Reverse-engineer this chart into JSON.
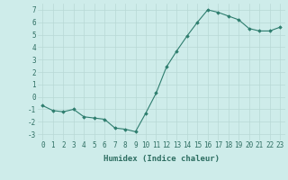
{
  "x": [
    0,
    1,
    2,
    3,
    4,
    5,
    6,
    7,
    8,
    9,
    10,
    11,
    12,
    13,
    14,
    15,
    16,
    17,
    18,
    19,
    20,
    21,
    22,
    23
  ],
  "y": [
    -0.7,
    -1.1,
    -1.2,
    -1.0,
    -1.6,
    -1.7,
    -1.8,
    -2.5,
    -2.6,
    -2.8,
    -1.3,
    0.3,
    2.4,
    3.7,
    4.9,
    6.0,
    7.0,
    6.8,
    6.5,
    6.2,
    5.5,
    5.3,
    5.3,
    5.6
  ],
  "line_color": "#2e7d6e",
  "marker": "D",
  "marker_size": 1.8,
  "line_width": 0.8,
  "bg_color": "#ceecea",
  "grid_color": "#b8d8d5",
  "xlabel": "Humidex (Indice chaleur)",
  "ylim": [
    -3.5,
    7.5
  ],
  "xlim": [
    -0.5,
    23.5
  ],
  "yticks": [
    -3,
    -2,
    -1,
    0,
    1,
    2,
    3,
    4,
    5,
    6,
    7
  ],
  "xticks": [
    0,
    1,
    2,
    3,
    4,
    5,
    6,
    7,
    8,
    9,
    10,
    11,
    12,
    13,
    14,
    15,
    16,
    17,
    18,
    19,
    20,
    21,
    22,
    23
  ],
  "xtick_labels": [
    "0",
    "1",
    "2",
    "3",
    "4",
    "5",
    "6",
    "7",
    "8",
    "9",
    "10",
    "11",
    "12",
    "13",
    "14",
    "15",
    "16",
    "17",
    "18",
    "19",
    "20",
    "21",
    "22",
    "23"
  ],
  "xlabel_fontsize": 6.5,
  "tick_fontsize": 5.5,
  "text_color": "#2e6e62"
}
